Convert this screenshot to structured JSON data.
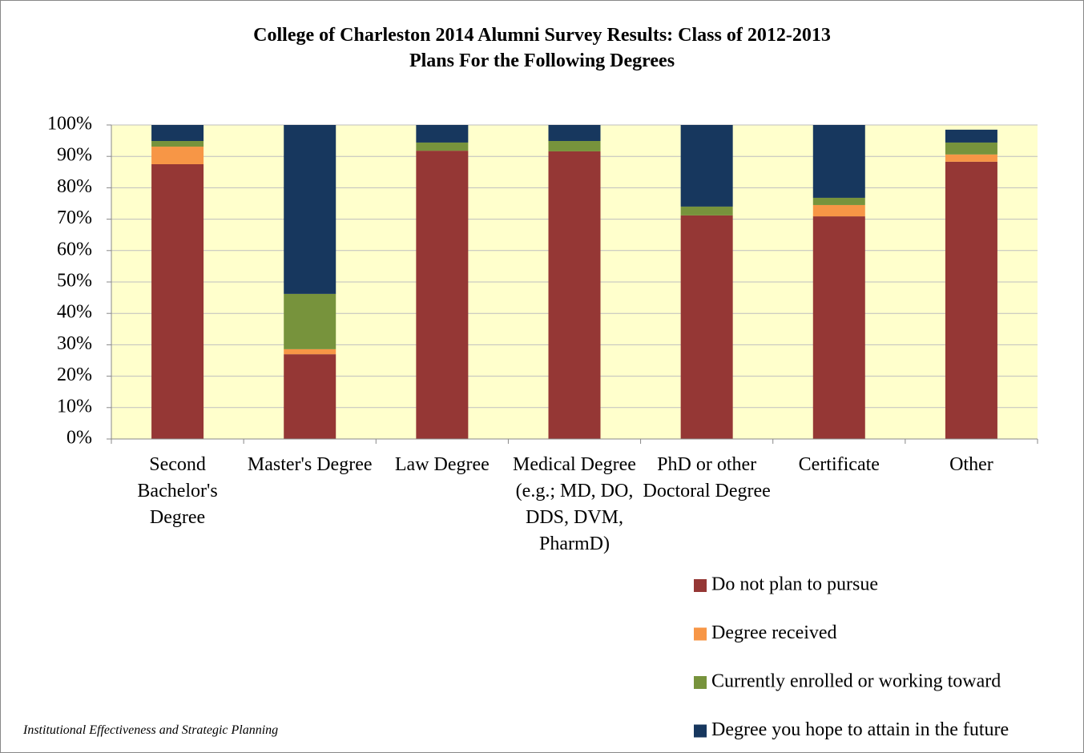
{
  "chart_data": {
    "type": "stacked_bar",
    "title": "College of Charleston 2014 Alumni Survey Results: Class of 2012-2013",
    "subtitle": "Plans For the Following Degrees",
    "footer": "Institutional Effectiveness and Strategic Planning",
    "categories": [
      "Second Bachelor's Degree",
      "Master's Degree",
      "Law Degree",
      "Medical Degree (e.g.; MD, DO, DDS, DVM, PharmD)",
      "PhD or other Doctoral Degree",
      "Certificate",
      "Other"
    ],
    "series": [
      {
        "name": "Do not plan to pursue",
        "color": "#953735",
        "values": [
          87.5,
          27.0,
          91.8,
          91.6,
          71.2,
          70.9,
          88.3
        ]
      },
      {
        "name": "Degree received",
        "color": "#f79646",
        "values": [
          5.6,
          1.6,
          0,
          0,
          0,
          3.6,
          2.3
        ]
      },
      {
        "name": "Currently enrolled or working toward",
        "color": "#77933c",
        "values": [
          1.8,
          17.6,
          2.6,
          3.3,
          2.8,
          2.3,
          3.8
        ]
      },
      {
        "name": "Degree you hope to attain in the future",
        "color": "#17375e",
        "values": [
          5.1,
          53.8,
          5.6,
          5.1,
          26.0,
          23.2,
          4.1
        ]
      }
    ],
    "ylim": [
      0,
      100
    ],
    "yticks": [
      {
        "value": 0,
        "label": "0%"
      },
      {
        "value": 10,
        "label": "10%"
      },
      {
        "value": 20,
        "label": "20%"
      },
      {
        "value": 30,
        "label": "30%"
      },
      {
        "value": 40,
        "label": "40%"
      },
      {
        "value": 50,
        "label": "50%"
      },
      {
        "value": 60,
        "label": "60%"
      },
      {
        "value": 70,
        "label": "70%"
      },
      {
        "value": 80,
        "label": "80%"
      },
      {
        "value": 90,
        "label": "90%"
      },
      {
        "value": 100,
        "label": "100%"
      }
    ],
    "grid": true,
    "legend": "bottom-right"
  }
}
